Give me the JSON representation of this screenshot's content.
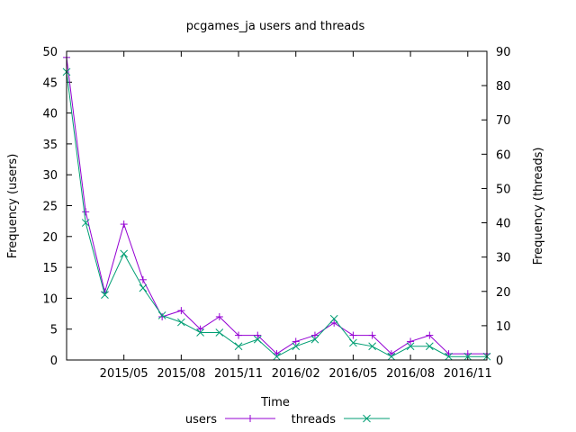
{
  "chart_data": {
    "type": "line",
    "title": "pcgames_ja users and threads",
    "xlabel": "Time",
    "ylabel_left": "Frequency (users)",
    "ylabel_right": "Frequency (threads)",
    "x_tick_labels": [
      "2015/05",
      "2015/08",
      "2015/11",
      "2016/02",
      "2016/05",
      "2016/08",
      "2016/11"
    ],
    "y_left_range": [
      0,
      50
    ],
    "y_left_ticks": [
      0,
      5,
      10,
      15,
      20,
      25,
      30,
      35,
      40,
      45,
      50
    ],
    "y_right_range": [
      0,
      90
    ],
    "y_right_ticks": [
      0,
      10,
      20,
      30,
      40,
      50,
      60,
      70,
      80,
      90
    ],
    "x_range": [
      "2015-02",
      "2016-12"
    ],
    "x": [
      "2015-02",
      "2015-03",
      "2015-04",
      "2015-05",
      "2015-06",
      "2015-07",
      "2015-08",
      "2015-09",
      "2015-10",
      "2015-11",
      "2015-12",
      "2016-01",
      "2016-02",
      "2016-03",
      "2016-04",
      "2016-05",
      "2016-06",
      "2016-07",
      "2016-08",
      "2016-09",
      "2016-10",
      "2016-11",
      "2016-12"
    ],
    "series": [
      {
        "name": "users",
        "axis": "left",
        "color": "#9400d3",
        "marker": "plus",
        "values": [
          49,
          24,
          11,
          22,
          13,
          7,
          8,
          5,
          7,
          4,
          4,
          1,
          3,
          4,
          6,
          4,
          4,
          1,
          3,
          4,
          1,
          1,
          1
        ]
      },
      {
        "name": "threads",
        "axis": "right",
        "color": "#009e73",
        "marker": "x",
        "values": [
          84,
          40,
          19,
          31,
          21,
          13,
          11,
          8,
          8,
          4,
          6,
          1,
          4,
          6,
          12,
          5,
          4,
          1,
          4,
          4,
          1,
          1,
          1
        ]
      }
    ],
    "grid": false,
    "legend": "bottom-center"
  }
}
